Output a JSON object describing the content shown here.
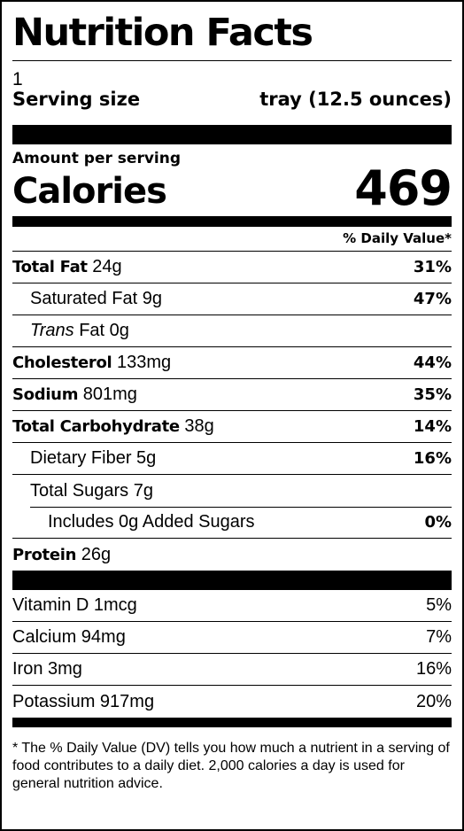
{
  "title": "Nutrition Facts",
  "servings": "1",
  "serving_size_label": "Serving size",
  "serving_size_value": "tray (12.5 ounces)",
  "amount_per_serving": "Amount per serving",
  "calories_label": "Calories",
  "calories_value": "469",
  "dv_header": "% Daily Value*",
  "nutrients": {
    "total_fat": {
      "label": "Total Fat",
      "amount": "24g",
      "dv": "31%"
    },
    "saturated_fat": {
      "label": "Saturated Fat",
      "amount": "9g",
      "dv": "47%"
    },
    "trans_fat": {
      "label_italic": "Trans",
      "label_rest": "Fat",
      "amount": "0g"
    },
    "cholesterol": {
      "label": "Cholesterol",
      "amount": "133mg",
      "dv": "44%"
    },
    "sodium": {
      "label": "Sodium",
      "amount": "801mg",
      "dv": "35%"
    },
    "total_carbohydrate": {
      "label": "Total Carbohydrate",
      "amount": "38g",
      "dv": "14%"
    },
    "dietary_fiber": {
      "label": "Dietary Fiber",
      "amount": "5g",
      "dv": "16%"
    },
    "total_sugars": {
      "label": "Total Sugars",
      "amount": "7g"
    },
    "added_sugars": {
      "text": "Includes 0g Added Sugars",
      "dv": "0%"
    },
    "protein": {
      "label": "Protein",
      "amount": "26g"
    }
  },
  "vitamins": [
    {
      "text": "Vitamin D 1mcg",
      "dv": "5%"
    },
    {
      "text": "Calcium 94mg",
      "dv": "7%"
    },
    {
      "text": "Iron 3mg",
      "dv": "16%"
    },
    {
      "text": "Potassium 917mg",
      "dv": "20%"
    }
  ],
  "footnote": "* The % Daily Value (DV) tells you how much a nutrient in a serving of food contributes to a daily diet. 2,000 calories a day is used for general nutrition advice."
}
